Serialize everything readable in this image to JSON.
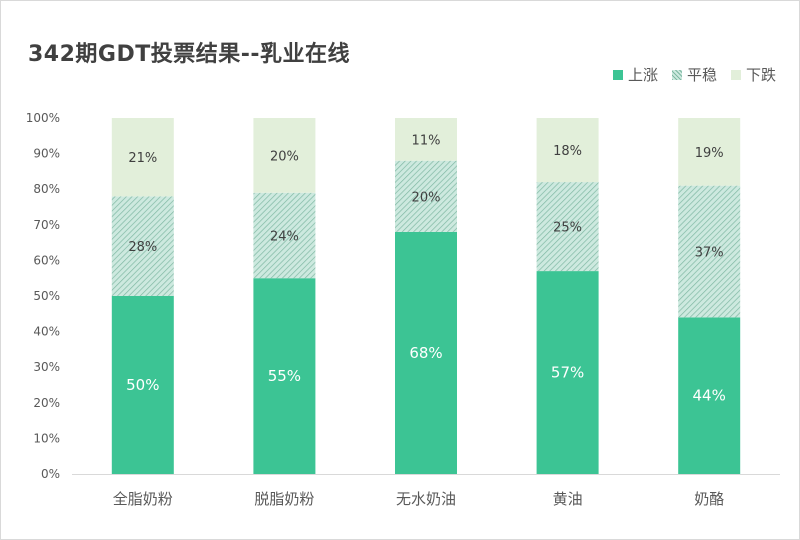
{
  "title": "342期GDT投票结果--乳业在线",
  "colors": {
    "up": "#3cc494",
    "flat": "#cde9df",
    "down": "#e2efda"
  },
  "chart_data": {
    "type": "bar",
    "stacked": true,
    "categories": [
      "全脂奶粉",
      "脱脂奶粉",
      "无水奶油",
      "黄油",
      "奶酪"
    ],
    "series": [
      {
        "name": "上涨",
        "values": [
          50,
          55,
          68,
          57,
          44
        ]
      },
      {
        "name": "平稳",
        "values": [
          28,
          24,
          20,
          25,
          37
        ]
      },
      {
        "name": "下跌",
        "values": [
          21,
          20,
          11,
          18,
          19
        ]
      }
    ],
    "ylim": [
      0,
      100
    ],
    "yticks": [
      "0%",
      "10%",
      "20%",
      "30%",
      "40%",
      "50%",
      "60%",
      "70%",
      "80%",
      "90%",
      "100%"
    ],
    "legend": "top-right"
  }
}
